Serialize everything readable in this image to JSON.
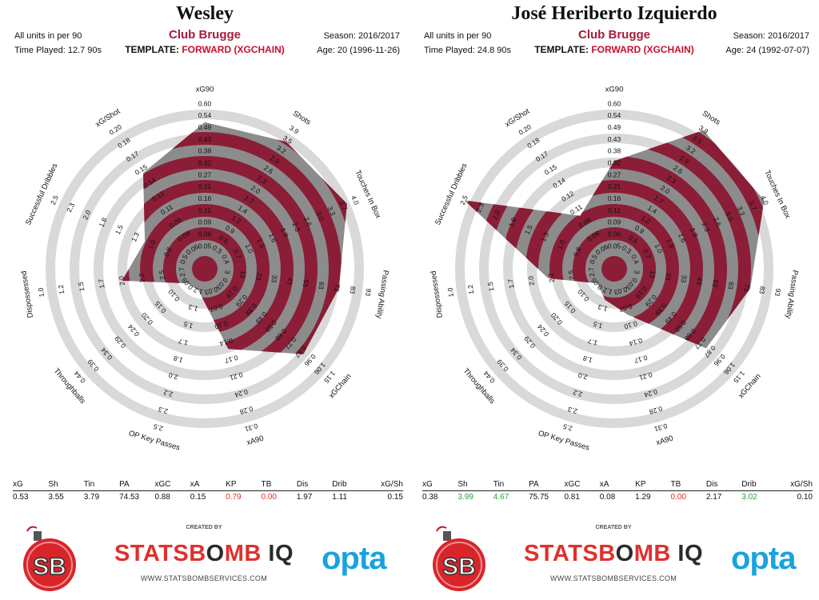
{
  "common": {
    "units": "All units in per 90",
    "template_label": "TEMPLATE:",
    "template_value": "FORWARD (XGCHAIN)",
    "season": "Season: 2016/2017",
    "created_by": "CREATED BY",
    "brand_statsbomb": "STATSB",
    "brand_bomb_o": "O",
    "brand_mb": "MB",
    "brand_iq": "IQ",
    "brand_url": "WWW.STATSBOMBSERVICES.COM",
    "brand_opta": "opta",
    "brand_sb": "SB"
  },
  "colors": {
    "accent": "#8b1d37",
    "fill_gray": "#8c8c8c",
    "ring": "#d9d9d9",
    "red": "#e0302c",
    "green": "#2e9e3c"
  },
  "players": [
    {
      "name": "Wesley",
      "club": "Club Brugge",
      "time_played": "Time Played: 12.7 90s",
      "age": "Age: 20 (1996-11-26)",
      "stats": [
        {
          "label": "xG",
          "value": "0.53",
          "color": ""
        },
        {
          "label": "Sh",
          "value": "3.55",
          "color": ""
        },
        {
          "label": "Tin",
          "value": "3.79",
          "color": ""
        },
        {
          "label": "PA",
          "value": "74.53",
          "color": ""
        },
        {
          "label": "xGC",
          "value": "0.88",
          "color": ""
        },
        {
          "label": "xA",
          "value": "0.15",
          "color": ""
        },
        {
          "label": "KP",
          "value": "0.79",
          "color": "red"
        },
        {
          "label": "TB",
          "value": "0.00",
          "color": "red"
        },
        {
          "label": "Dis",
          "value": "1.97",
          "color": ""
        },
        {
          "label": "Drib",
          "value": "1.11",
          "color": ""
        },
        {
          "label": "xG/Sh",
          "value": "0.15",
          "color": ""
        }
      ]
    },
    {
      "name": "José Heriberto Izquierdo",
      "club": "Club Brugge",
      "time_played": "Time Played: 24.8 90s",
      "age": "Age: 24 (1992-07-07)",
      "stats": [
        {
          "label": "xG",
          "value": "0.38",
          "color": ""
        },
        {
          "label": "Sh",
          "value": "3.99",
          "color": "green"
        },
        {
          "label": "Tin",
          "value": "4.67",
          "color": "green"
        },
        {
          "label": "PA",
          "value": "75.75",
          "color": ""
        },
        {
          "label": "xGC",
          "value": "0.81",
          "color": ""
        },
        {
          "label": "xA",
          "value": "0.08",
          "color": ""
        },
        {
          "label": "KP",
          "value": "1.29",
          "color": ""
        },
        {
          "label": "TB",
          "value": "0.00",
          "color": "red"
        },
        {
          "label": "Dis",
          "value": "2.17",
          "color": ""
        },
        {
          "label": "Drib",
          "value": "3.02",
          "color": "green"
        },
        {
          "label": "xG/Sh",
          "value": "0.10",
          "color": ""
        }
      ]
    }
  ],
  "chart_data": [
    {
      "type": "radar",
      "title": "Wesley",
      "axes": [
        {
          "name": "xG90",
          "ticks": [
            "0.05",
            "0.06",
            "0.09",
            "0.11",
            "0.16",
            "0.21",
            "0.27",
            "0.32",
            "0.38",
            "0.43",
            "0.49",
            "0.54",
            "0.60"
          ]
        },
        {
          "name": "Shots",
          "ticks": [
            "0.3",
            "0.6",
            "0.9",
            "1.2",
            "1.4",
            "1.7",
            "2.0",
            "2.3",
            "2.6",
            "2.9",
            "3.2",
            "3.5",
            "3.9"
          ]
        },
        {
          "name": "Touches In Box",
          "ticks": [
            "0.4",
            "0.7",
            "1.0",
            "1.3",
            "1.6",
            "1.9",
            "2.3",
            "2.6",
            "3.0",
            "3.3",
            "3.7",
            "4.0"
          ]
        },
        {
          "name": "Passing Ability",
          "ticks": [
            "3",
            "13",
            "23",
            "33",
            "43",
            "53",
            "63",
            "73",
            "83",
            "93"
          ]
        },
        {
          "name": "xGChain",
          "ticks": [
            "0.03",
            "0.19",
            "0.29",
            "0.39",
            "0.49",
            "0.58",
            "0.68",
            "0.77",
            "0.87",
            "0.96",
            "1.06",
            "1.15"
          ]
        },
        {
          "name": "xA90",
          "ticks": [
            "0.03",
            "0.07",
            "0.10",
            "0.14",
            "0.17",
            "0.21",
            "0.24",
            "0.28",
            "0.31"
          ]
        },
        {
          "name": "OP Key Passes",
          "ticks": [
            "1.2",
            "1.3",
            "1.5",
            "1.7",
            "1.8",
            "2.0",
            "2.2",
            "2.3",
            "2.5"
          ]
        },
        {
          "name": "Throughballs",
          "ticks": [
            "0.05",
            "0.10",
            "0.15",
            "0.20",
            "0.24",
            "0.29",
            "0.34",
            "0.39",
            "0.44"
          ]
        },
        {
          "name": "Dispossessed",
          "ticks": [
            "2.7",
            "2.5",
            "2.2",
            "2.0",
            "1.7",
            "1.5",
            "1.2",
            "1.0"
          ]
        },
        {
          "name": "Successful Dribbles",
          "ticks": [
            "0.5",
            "0.8",
            "1.0",
            "1.3",
            "1.5",
            "1.8",
            "2.0",
            "2.3",
            "2.5"
          ]
        },
        {
          "name": "xG/Shot",
          "ticks": [
            "0.06",
            "0.08",
            "0.09",
            "0.11",
            "0.12",
            "0.14",
            "0.15",
            "0.17",
            "0.18",
            "0.20"
          ]
        }
      ],
      "values": [
        0.53,
        3.55,
        3.79,
        74.53,
        0.88,
        0.15,
        0.79,
        0.0,
        1.97,
        1.11,
        0.15
      ]
    },
    {
      "type": "radar",
      "title": "José Heriberto Izquierdo",
      "axes": [
        {
          "name": "xG90",
          "ticks": [
            "0.05",
            "0.06",
            "0.09",
            "0.11",
            "0.16",
            "0.21",
            "0.27",
            "0.32",
            "0.38",
            "0.43",
            "0.49",
            "0.54",
            "0.60"
          ]
        },
        {
          "name": "Shots",
          "ticks": [
            "0.3",
            "0.6",
            "0.9",
            "1.2",
            "1.4",
            "1.7",
            "2.0",
            "2.3",
            "2.6",
            "2.9",
            "3.2",
            "3.5",
            "3.9"
          ]
        },
        {
          "name": "Touches In Box",
          "ticks": [
            "0.4",
            "0.7",
            "1.0",
            "1.3",
            "1.6",
            "1.9",
            "2.3",
            "2.6",
            "3.0",
            "3.3",
            "3.7",
            "4.0"
          ]
        },
        {
          "name": "Passing Ability",
          "ticks": [
            "3",
            "13",
            "23",
            "33",
            "43",
            "53",
            "63",
            "73",
            "83",
            "93"
          ]
        },
        {
          "name": "xGChain",
          "ticks": [
            "0.03",
            "0.19",
            "0.29",
            "0.39",
            "0.49",
            "0.58",
            "0.68",
            "0.77",
            "0.87",
            "0.96",
            "1.06",
            "1.15"
          ]
        },
        {
          "name": "xA90",
          "ticks": [
            "0.03",
            "0.07",
            "0.10",
            "0.14",
            "0.17",
            "0.21",
            "0.24",
            "0.28",
            "0.31"
          ]
        },
        {
          "name": "OP Key Passes",
          "ticks": [
            "1.2",
            "1.3",
            "1.5",
            "1.7",
            "1.8",
            "2.0",
            "2.2",
            "2.3",
            "2.5"
          ]
        },
        {
          "name": "Throughballs",
          "ticks": [
            "0.05",
            "0.10",
            "0.15",
            "0.20",
            "0.24",
            "0.29",
            "0.34",
            "0.39",
            "0.44"
          ]
        },
        {
          "name": "Dispossessed",
          "ticks": [
            "2.7",
            "2.5",
            "2.2",
            "2.0",
            "1.7",
            "1.5",
            "1.2",
            "1.0"
          ]
        },
        {
          "name": "Successful Dribbles",
          "ticks": [
            "0.5",
            "0.8",
            "1.0",
            "1.3",
            "1.5",
            "1.8",
            "2.0",
            "2.3",
            "2.5"
          ]
        },
        {
          "name": "xG/Shot",
          "ticks": [
            "0.06",
            "0.08",
            "0.09",
            "0.11",
            "0.12",
            "0.14",
            "0.15",
            "0.17",
            "0.18",
            "0.20"
          ]
        }
      ],
      "values": [
        0.38,
        3.99,
        4.67,
        75.75,
        0.81,
        0.08,
        1.29,
        0.0,
        2.17,
        3.02,
        0.1
      ]
    }
  ]
}
